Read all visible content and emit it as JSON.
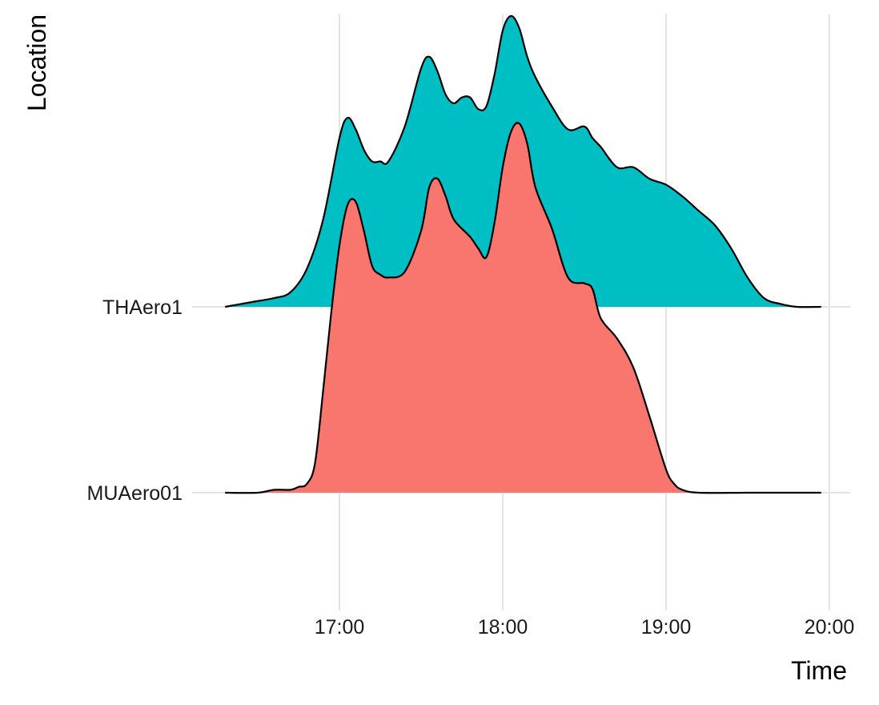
{
  "chart_data": {
    "type": "ridgeline",
    "title": "",
    "xlabel": "Time",
    "ylabel": "Location",
    "x_tick_labels": [
      "17:00",
      "18:00",
      "19:00",
      "20:00"
    ],
    "x_ticks_hours": [
      17,
      18,
      19,
      20
    ],
    "xlim_hours": [
      16.1,
      20.14
    ],
    "categories": [
      "THAero1",
      "MUAero01"
    ],
    "grid": true,
    "legend": "none",
    "series": [
      {
        "name": "THAero1",
        "color": "#00BFC4",
        "density_x_hours": [
          16.3,
          16.4,
          16.5,
          16.6,
          16.7,
          16.8,
          16.9,
          17.0,
          17.05,
          17.1,
          17.15,
          17.2,
          17.25,
          17.3,
          17.4,
          17.5,
          17.55,
          17.6,
          17.65,
          17.7,
          17.75,
          17.8,
          17.85,
          17.9,
          17.95,
          18.0,
          18.05,
          18.1,
          18.15,
          18.2,
          18.3,
          18.4,
          18.5,
          18.55,
          18.6,
          18.7,
          18.8,
          18.9,
          19.0,
          19.1,
          19.2,
          19.3,
          19.4,
          19.5,
          19.6,
          19.7,
          19.8,
          19.95
        ],
        "density_y": [
          0.0,
          0.01,
          0.02,
          0.03,
          0.05,
          0.13,
          0.3,
          0.58,
          0.65,
          0.61,
          0.54,
          0.5,
          0.5,
          0.5,
          0.62,
          0.82,
          0.86,
          0.81,
          0.73,
          0.7,
          0.72,
          0.72,
          0.68,
          0.69,
          0.8,
          0.95,
          1.0,
          0.96,
          0.86,
          0.79,
          0.69,
          0.61,
          0.62,
          0.58,
          0.55,
          0.48,
          0.48,
          0.44,
          0.42,
          0.38,
          0.33,
          0.28,
          0.2,
          0.1,
          0.03,
          0.01,
          0.0,
          0.0
        ]
      },
      {
        "name": "MUAero01",
        "color": "#F8766D",
        "density_x_hours": [
          16.3,
          16.5,
          16.6,
          16.7,
          16.75,
          16.8,
          16.85,
          16.9,
          16.95,
          17.0,
          17.05,
          17.1,
          17.15,
          17.2,
          17.25,
          17.3,
          17.4,
          17.5,
          17.55,
          17.6,
          17.65,
          17.7,
          17.8,
          17.85,
          17.9,
          17.95,
          18.0,
          18.05,
          18.1,
          18.15,
          18.2,
          18.3,
          18.4,
          18.5,
          18.55,
          18.6,
          18.7,
          18.8,
          18.9,
          19.0,
          19.05,
          19.1,
          19.2,
          19.5,
          19.7,
          19.95
        ],
        "density_y": [
          0.0,
          0.0,
          0.01,
          0.01,
          0.02,
          0.03,
          0.1,
          0.35,
          0.62,
          0.85,
          0.99,
          1.0,
          0.9,
          0.78,
          0.75,
          0.74,
          0.76,
          0.9,
          1.05,
          1.08,
          1.02,
          0.94,
          0.88,
          0.84,
          0.81,
          0.93,
          1.12,
          1.24,
          1.27,
          1.2,
          1.05,
          0.91,
          0.74,
          0.72,
          0.7,
          0.6,
          0.53,
          0.43,
          0.26,
          0.08,
          0.03,
          0.01,
          0.0,
          0.0,
          0.0,
          0.0
        ]
      }
    ]
  }
}
